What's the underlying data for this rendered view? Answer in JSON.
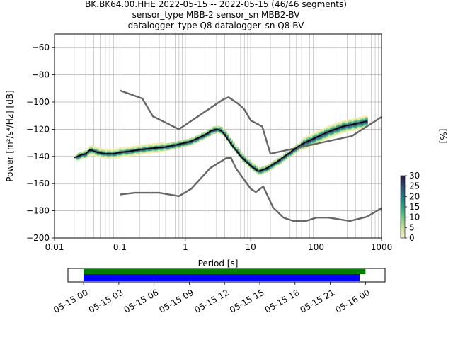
{
  "figure": {
    "title_lines": [
      "BK.BK64.00.HHE   2022-05-15 -- 2022-05-15  (46/46 segments)",
      "sensor_type MBB-2 sensor_sn MBB2-BV",
      "datalogger_type Q8 datalogger_sn Q8-BV"
    ]
  },
  "chart_data": [
    {
      "type": "line",
      "title": "BK.BK64.00.HHE   2022-05-15 -- 2022-05-15  (46/46 segments)",
      "xlabel": "Period [s]",
      "ylabel": "Power [m²/s⁴/Hz] [dB]",
      "x_scale": "log",
      "xlim": [
        0.01,
        1000
      ],
      "ylim": [
        -200,
        -50
      ],
      "x_ticks": [
        "0.01",
        "0.1",
        "1",
        "10",
        "100",
        "1000"
      ],
      "y_ticks": [
        "−200",
        "−180",
        "−160",
        "−140",
        "−120",
        "−100",
        "−80",
        "−60"
      ],
      "grid": true,
      "colors": {
        "noise_models": "#666666",
        "mode": "#000000",
        "density_low": "#e8e6a0",
        "density_mid": "#33b08a",
        "density_high": "#2a1a4a"
      },
      "colorbar": {
        "label": "[%]",
        "ticks": [
          "0",
          "5",
          "10",
          "15",
          "20",
          "25",
          "30"
        ],
        "range": [
          0,
          30
        ]
      },
      "series": [
        {
          "name": "",
          "role": "high noise model",
          "x": [
            0.1,
            0.22,
            0.32,
            0.8,
            3.8,
            4.6,
            6.3,
            7.9,
            10,
            15,
            20,
            354,
            1000
          ],
          "y": [
            -91.5,
            -97.4,
            -110.5,
            -120.0,
            -98.0,
            -96.5,
            -101.0,
            -105.0,
            -113.5,
            -118.0,
            -138.0,
            -125.0,
            -111.0
          ]
        },
        {
          "name": "",
          "role": "low noise model",
          "x": [
            0.1,
            0.17,
            0.4,
            0.8,
            1.24,
            2.4,
            4.3,
            5.0,
            6.0,
            10,
            12,
            15.6,
            21.9,
            31.6,
            45,
            70,
            101,
            154,
            328,
            600,
            1000
          ],
          "y": [
            -168.0,
            -166.7,
            -166.7,
            -169.2,
            -163.7,
            -148.6,
            -141.1,
            -141.1,
            -149.0,
            -163.8,
            -166.2,
            -162.1,
            -177.5,
            -185.0,
            -187.5,
            -187.5,
            -185.0,
            -185.0,
            -187.5,
            -184.4,
            -178.0
          ]
        },
        {
          "name": "",
          "role": "mode",
          "x": [
            0.02,
            0.025,
            0.03,
            0.035,
            0.045,
            0.06,
            0.08,
            0.1,
            0.15,
            0.2,
            0.3,
            0.5,
            0.8,
            1.2,
            2,
            2.5,
            3,
            3.5,
            4,
            5,
            7,
            10,
            13,
            17,
            25,
            40,
            60,
            100,
            150,
            250,
            400,
            600
          ],
          "y": [
            -141,
            -139,
            -138,
            -135,
            -137,
            -138,
            -138,
            -137,
            -136,
            -135,
            -134,
            -133,
            -131,
            -129,
            -124,
            -121,
            -120,
            -121,
            -124,
            -131,
            -140,
            -147,
            -151,
            -149,
            -144,
            -137,
            -131,
            -126,
            -122,
            -118,
            -116,
            -114
          ]
        }
      ]
    },
    {
      "type": "bar",
      "role": "data coverage",
      "xlabel": "",
      "ylabel": "",
      "x_ticks": [
        "05-15 00",
        "05-15 03",
        "05-15 06",
        "05-15 09",
        "05-15 12",
        "05-15 15",
        "05-15 18",
        "05-15 21",
        "05-16 00"
      ],
      "xlim": [
        "2022-05-14 22:40",
        "2022-05-16 01:40"
      ],
      "series": [
        {
          "name": "",
          "color": "#008000",
          "start": "2022-05-15 00:00",
          "end": "2022-05-16 00:00"
        },
        {
          "name": "",
          "color": "#0000ff",
          "start": "2022-05-15 00:00",
          "end": "2022-05-15 23:30"
        }
      ]
    }
  ]
}
